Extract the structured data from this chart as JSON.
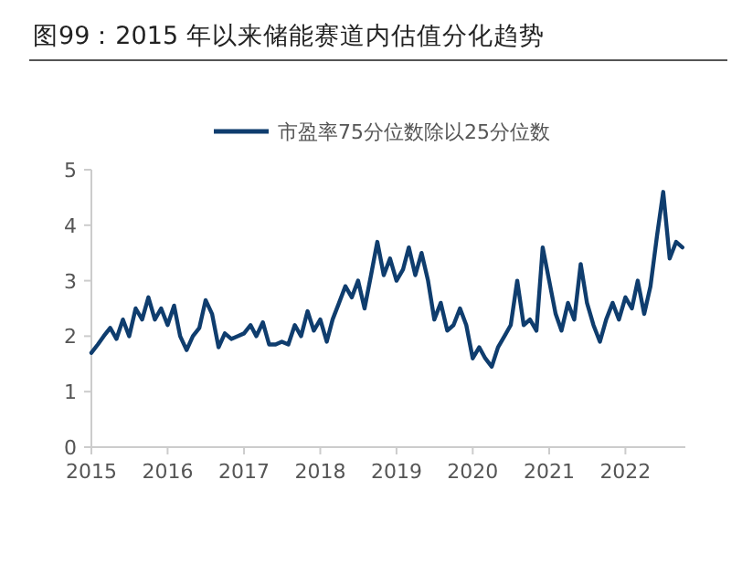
{
  "chart_data": {
    "type": "line",
    "title": "图99：2015 年以来储能赛道内估值分化趋势",
    "x": [
      "2015-01",
      "2015-02",
      "2015-03",
      "2015-04",
      "2015-05",
      "2015-06",
      "2015-07",
      "2015-08",
      "2015-09",
      "2015-10",
      "2015-11",
      "2015-12",
      "2016-01",
      "2016-02",
      "2016-03",
      "2016-04",
      "2016-05",
      "2016-06",
      "2016-07",
      "2016-08",
      "2016-09",
      "2016-10",
      "2016-11",
      "2016-12",
      "2017-01",
      "2017-02",
      "2017-03",
      "2017-04",
      "2017-05",
      "2017-06",
      "2017-07",
      "2017-08",
      "2017-09",
      "2017-10",
      "2017-11",
      "2017-12",
      "2018-01",
      "2018-02",
      "2018-03",
      "2018-04",
      "2018-05",
      "2018-06",
      "2018-07",
      "2018-08",
      "2018-09",
      "2018-10",
      "2018-11",
      "2018-12",
      "2019-01",
      "2019-02",
      "2019-03",
      "2019-04",
      "2019-05",
      "2019-06",
      "2019-07",
      "2019-08",
      "2019-09",
      "2019-10",
      "2019-11",
      "2019-12",
      "2020-01",
      "2020-02",
      "2020-03",
      "2020-04",
      "2020-05",
      "2020-06",
      "2020-07",
      "2020-08",
      "2020-09",
      "2020-10",
      "2020-11",
      "2020-12",
      "2021-01",
      "2021-02",
      "2021-03",
      "2021-04",
      "2021-05",
      "2021-06",
      "2021-07",
      "2021-08",
      "2021-09",
      "2021-10",
      "2021-11",
      "2021-12",
      "2022-01",
      "2022-02",
      "2022-03",
      "2022-04",
      "2022-05",
      "2022-06",
      "2022-07",
      "2022-08",
      "2022-09",
      "2022-10"
    ],
    "series": [
      {
        "name": "市盈率75分位数除以25分位数",
        "color": "#0f3d6e",
        "values": [
          1.7,
          1.85,
          2.0,
          2.15,
          1.95,
          2.3,
          2.0,
          2.5,
          2.3,
          2.7,
          2.3,
          2.5,
          2.2,
          2.55,
          2.0,
          1.75,
          2.0,
          2.15,
          2.65,
          2.4,
          1.8,
          2.05,
          1.95,
          2.0,
          2.05,
          2.2,
          2.0,
          2.25,
          1.85,
          1.85,
          1.9,
          1.85,
          2.2,
          2.0,
          2.45,
          2.1,
          2.3,
          1.9,
          2.3,
          2.6,
          2.9,
          2.7,
          3.0,
          2.5,
          3.1,
          3.7,
          3.1,
          3.4,
          3.0,
          3.2,
          3.6,
          3.1,
          3.5,
          3.0,
          2.3,
          2.6,
          2.1,
          2.2,
          2.5,
          2.2,
          1.6,
          1.8,
          1.6,
          1.45,
          1.8,
          2.0,
          2.2,
          3.0,
          2.2,
          2.3,
          2.1,
          3.6,
          3.0,
          2.4,
          2.1,
          2.6,
          2.3,
          3.3,
          2.6,
          2.2,
          1.9,
          2.3,
          2.6,
          2.3,
          2.7,
          2.5,
          3.0,
          2.4,
          2.9,
          3.8,
          4.6,
          3.4,
          3.7,
          3.6
        ]
      }
    ],
    "xlim": [
      "2015-01-01",
      "2022-10-15"
    ],
    "xticks": [
      "2015",
      "2016",
      "2017",
      "2018",
      "2019",
      "2020",
      "2021",
      "2022"
    ],
    "ylim": [
      0,
      5
    ],
    "yticks": [
      0,
      1,
      2,
      3,
      4,
      5
    ],
    "grid": false,
    "legend": "top",
    "line_style": "solid",
    "marker": "none"
  }
}
